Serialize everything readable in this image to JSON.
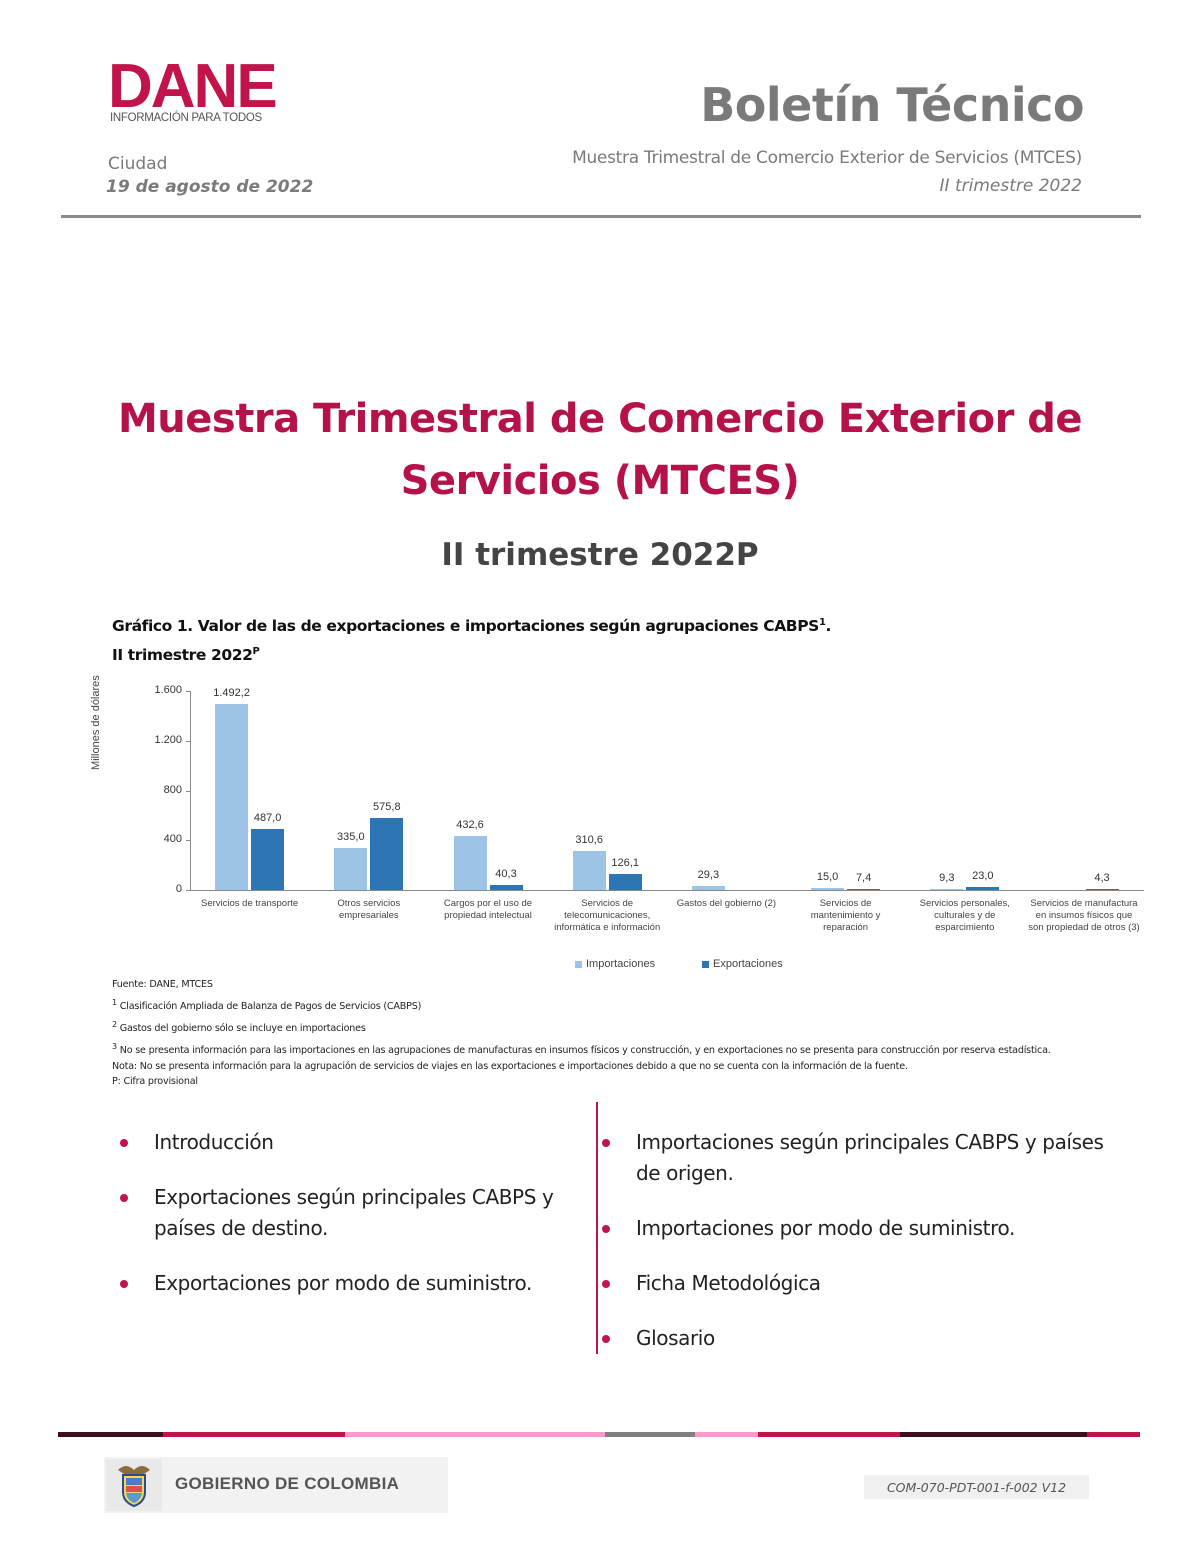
{
  "header": {
    "logo": {
      "name": "DANE",
      "tagline": "INFORMACIÓN PARA TODOS",
      "color": "#c0144b"
    },
    "city": "Ciudad",
    "date": "19 de agosto de 2022",
    "bulletin_title": "Boletín Técnico",
    "bulletin_subtitle": "Muestra Trimestral de Comercio Exterior de Servicios (MTCES)",
    "bulletin_period": "II trimestre 2022"
  },
  "main": {
    "title_line1": "Muestra Trimestral de Comercio Exterior de",
    "title_line2": "Servicios (MTCES)",
    "period": "II trimestre 2022P",
    "accent_color": "#b5124a"
  },
  "chart_caption": {
    "line1": "Gráfico 1. Valor de las de exportaciones e importaciones según agrupaciones CABPS",
    "line1_sup": "1",
    "line1_end": ".",
    "line2": "II trimestre 2022",
    "line2_sup": "P"
  },
  "chart_data": {
    "type": "bar",
    "title": "Gráfico 1. Valor de las de exportaciones e importaciones según agrupaciones CABPS. II trimestre 2022P",
    "xlabel": "",
    "ylabel": "Millones de dólares",
    "ylim": [
      0,
      1600
    ],
    "yticks": [
      "0",
      "400",
      "800",
      "1.200",
      "1.600"
    ],
    "yticks_values": [
      0,
      400,
      800,
      1200,
      1600
    ],
    "grid": false,
    "legend_position": "bottom",
    "categories": [
      "Servicios de transporte",
      "Otros servicios empresariales",
      "Cargos por el uso de propiedad intelectual",
      "Servicios de telecomunicaciones, informática e información",
      "Gastos del gobierno (2)",
      "Servicios de mantenimiento y reparación",
      "Servicios personales, culturales y de esparcimiento",
      "Servicios de manufactura en insumos físicos que son propiedad de otros (3)"
    ],
    "category_lines": [
      [
        "Servicios de transporte"
      ],
      [
        "Otros servicios",
        "empresariales"
      ],
      [
        "Cargos por el uso de",
        "propiedad intelectual"
      ],
      [
        "Servicios de",
        "telecomunicaciones,",
        "informática e información"
      ],
      [
        "Gastos del gobierno (2)"
      ],
      [
        "Servicios de",
        "mantenimiento y",
        "reparación"
      ],
      [
        "Servicios personales,",
        "culturales y de",
        "esparcimiento"
      ],
      [
        "Servicios de manufactura",
        "en insumos físicos que",
        "son propiedad de otros (3)"
      ]
    ],
    "series": [
      {
        "name": "Importaciones",
        "color": "#9dc3e6",
        "values": [
          1492.2,
          335.0,
          432.6,
          310.6,
          29.3,
          15.0,
          9.3,
          null
        ],
        "labels": [
          "1.492,2",
          "335,0",
          "432,6",
          "310,6",
          "29,3",
          "15,0",
          "9,3",
          ""
        ]
      },
      {
        "name": "Exportaciones",
        "color": "#2e75b6",
        "values": [
          487.0,
          575.8,
          40.3,
          126.1,
          null,
          7.4,
          23.0,
          4.3
        ],
        "labels": [
          "487,0",
          "575,8",
          "40,3",
          "126,1",
          "",
          "7,4",
          "23,0",
          "4,3"
        ]
      }
    ]
  },
  "notes": {
    "source": "Fuente: DANE, MTCES",
    "n1_sup": "1",
    "n1": "Clasificación Ampliada de Balanza de Pagos de Servicios (CABPS)",
    "n2_sup": "2",
    "n2": "Gastos del gobierno sólo se incluye en importaciones",
    "n3_sup": "3",
    "n3": "No se presenta información para las importaciones en las agrupaciones de manufacturas en insumos físicos y construcción, y en exportaciones no se presenta para construcción por reserva estadística.",
    "nota": "Nota: No se presenta información para la agrupación de servicios de viajes en las exportaciones e importaciones debido a que no se cuenta con la información de la fuente.",
    "p": "P: Cifra provisional"
  },
  "contents": {
    "left": [
      "Introducción",
      "Exportaciones según principales CABPS y países de destino.",
      "Exportaciones por modo de suministro."
    ],
    "right": [
      "Importaciones según principales CABPS y países de origen.",
      "Importaciones por modo de suministro.",
      "Ficha Metodológica",
      "Glosario"
    ]
  },
  "footer": {
    "government": "GOBIERNO DE COLOMBIA",
    "code": "COM-070-PDT-001-f-002 V12",
    "stripe_colors": [
      "#3d0f1c",
      "#c0144b",
      "#ff99cc",
      "#7f7f7f",
      "#ff99cc",
      "#c0144b",
      "#3d0f1c",
      "#c0144b"
    ]
  }
}
